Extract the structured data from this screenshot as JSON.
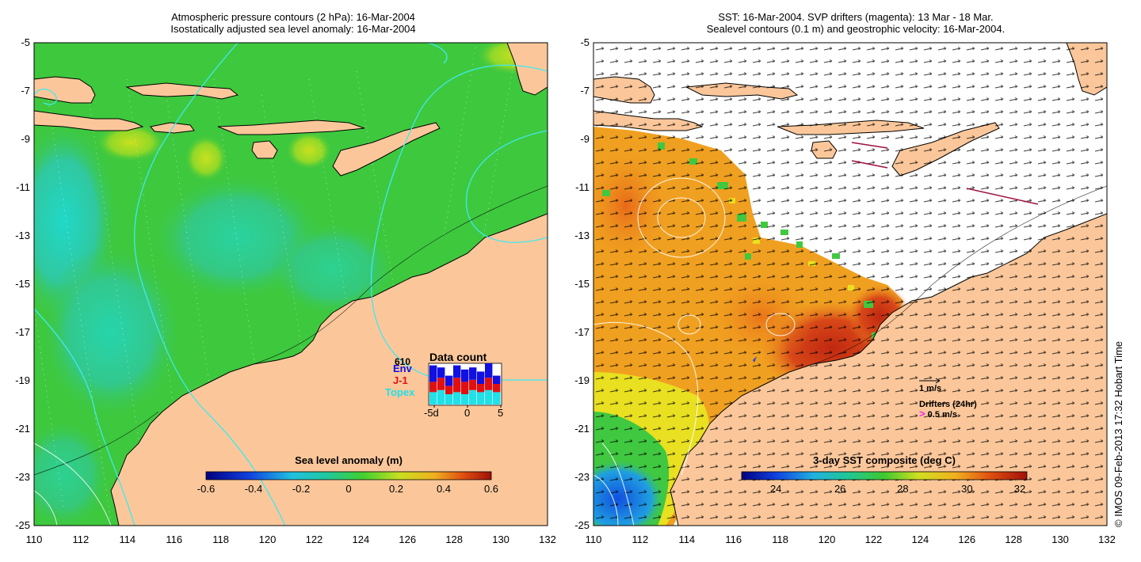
{
  "left_panel": {
    "title_line1": "Atmospheric pressure contours (2 hPa): 16-Mar-2004",
    "title_line2": "Isostatically adjusted sea level anomaly: 16-Mar-2004",
    "colorbar": {
      "label": "Sea level anomaly (m)",
      "ticks": [
        "-0.6",
        "-0.4",
        "-0.2",
        "0",
        "0.2",
        "0.4",
        "0.6"
      ]
    },
    "data_count": {
      "title": "Data count",
      "count": "610",
      "legend": [
        "Env",
        "J-1",
        "Topex"
      ],
      "xticks": [
        "-5d",
        "0",
        "5"
      ],
      "colors": {
        "env": "#1010e0",
        "j1": "#e01010",
        "topex": "#20e0e8"
      },
      "bars": [
        {
          "topex": 0.3,
          "j1": 0.25,
          "env": 0.4
        },
        {
          "topex": 0.35,
          "j1": 0.3,
          "env": 0.25
        },
        {
          "topex": 0.25,
          "j1": 0.2,
          "env": 0.25
        },
        {
          "topex": 0.3,
          "j1": 0.35,
          "env": 0.3
        },
        {
          "topex": 0.25,
          "j1": 0.3,
          "env": 0.3
        },
        {
          "topex": 0.35,
          "j1": 0.25,
          "env": 0.3
        },
        {
          "topex": 0.3,
          "j1": 0.2,
          "env": 0.3
        },
        {
          "topex": 0.35,
          "j1": 0.3,
          "env": 0.35
        },
        {
          "topex": 0.3,
          "j1": 0.2,
          "env": 0.2
        }
      ]
    }
  },
  "right_panel": {
    "title_line1": "SST: 16-Mar-2004. SVP drifters (magenta): 13 Mar - 18 Mar.",
    "title_line2": "Sealevel contours (0.1 m) and geostrophic velocity: 16-Mar-2004.",
    "colorbar": {
      "label": "3-day SST composite (deg C)",
      "ticks": [
        "24",
        "26",
        "28",
        "30",
        "32"
      ]
    },
    "velocity_scale_label": "1 m/s",
    "drifters_label": "Drifters (24hr)",
    "drifter_scale_label": "0.5 m/s",
    "drifter_marker": ">"
  },
  "axes": {
    "y_ticks": [
      "-5",
      "-7",
      "-9",
      "-11",
      "-13",
      "-15",
      "-17",
      "-19",
      "-21",
      "-23",
      "-25"
    ],
    "x_ticks": [
      "110",
      "112",
      "114",
      "116",
      "118",
      "120",
      "122",
      "124",
      "126",
      "128",
      "130",
      "132"
    ]
  },
  "credit": "© IMOS 09-Feb-2013 17:32 Hobart Time",
  "colors": {
    "land": "#fbc79a",
    "sea_green": "#3ec83e",
    "sea_teal": "#20c8a0",
    "sea_cyan": "#20d8d0",
    "sea_yellow_green": "#a8e030",
    "sst_orange": "#f0a020",
    "sst_red": "#c02810",
    "sst_yellow": "#e8e020",
    "sst_blue": "#2060e0",
    "contour_cyan": "#40e8f0",
    "magenta": "#ff20ff"
  }
}
